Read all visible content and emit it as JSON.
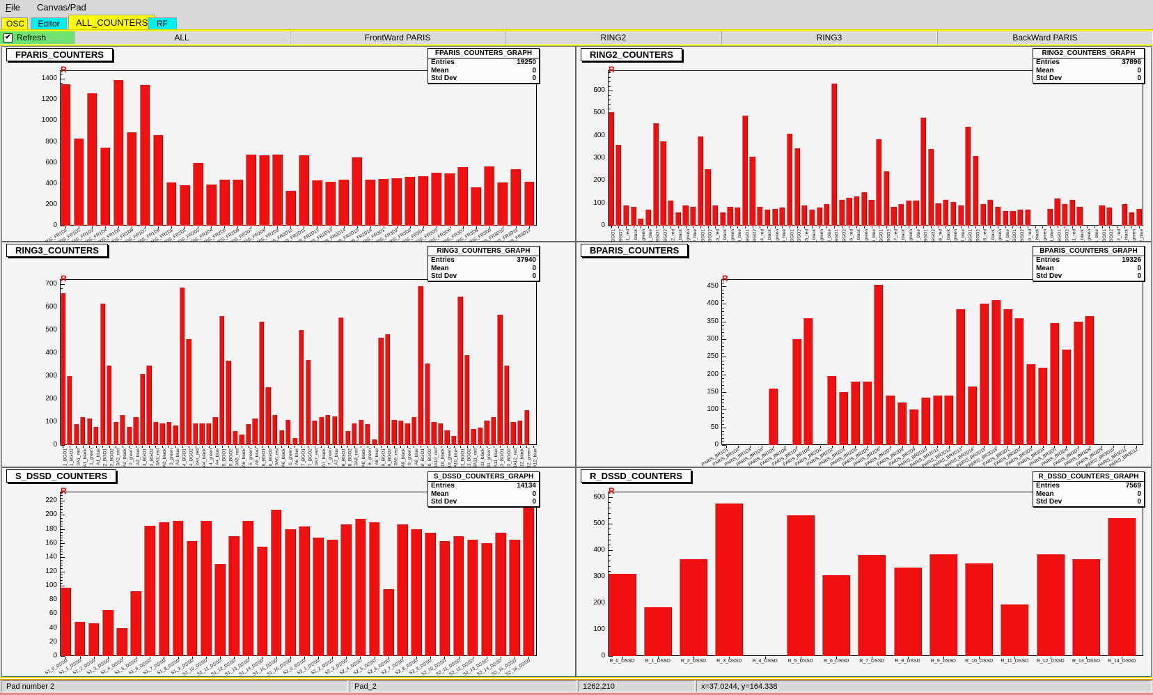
{
  "menu": {
    "items": [
      {
        "label": "File"
      },
      {
        "label": "Canvas/Pad"
      }
    ]
  },
  "tabs": [
    {
      "label": "OSC"
    },
    {
      "label": "Editor"
    },
    {
      "label": "ALL_COUNTERS"
    },
    {
      "label": "RF"
    }
  ],
  "toolbar": {
    "refresh_label": "Refresh",
    "refresh_checked": true,
    "checkmark": "✔",
    "buttons": [
      {
        "label": "ALL"
      },
      {
        "label": "FrontWard PARIS"
      },
      {
        "label": "RING2"
      },
      {
        "label": "RING3"
      },
      {
        "label": "BackWard PARIS"
      }
    ]
  },
  "stats_labels": {
    "entries": "Entries",
    "mean": "Mean",
    "std_dev": "Std Dev"
  },
  "marker_label": "R",
  "colors": {
    "bar": "#f11010",
    "tab_yellow": "#ffff00",
    "tab_cyan": "#00f0f0",
    "refresh_green": "#6fe26f",
    "underline_yellow": "#ffff00",
    "marker_red": "#f20000"
  },
  "statusbar": {
    "fields": [
      {
        "text": "Pad number 2"
      },
      {
        "text": "Pad_2"
      },
      {
        "text": "1262,210"
      },
      {
        "text": "x=37.0244, y=164.338"
      }
    ]
  },
  "chart_data": [
    {
      "type": "bar",
      "title": "FPARIS_COUNTERS",
      "grid": false,
      "legend": false,
      "stats": {
        "name": "FPARIS_COUNTERS_GRAPH",
        "entries": 19250,
        "mean": 0,
        "std_dev": 0
      },
      "ylim": [
        0,
        1480
      ],
      "yticks": {
        "max": 1400,
        "step": 200,
        "minor": 40
      },
      "categories": [
        "PARIS_FR1D1",
        "PARIS_FR1D2",
        "PARIS_FR1D3",
        "PARIS_FR1D4",
        "PARIS_FR1D5",
        "PARIS_FR1D6",
        "PARIS_FR1D7",
        "PARIS_FR1D8",
        "PARIS_FR2D1",
        "PARIS_FR2D2",
        "PARIS_FR2D3",
        "PARIS_FR2D4",
        "PARIS_FR2D5",
        "PARIS_FR2D6",
        "PARIS_FR2D7",
        "PARIS_FR2D8",
        "PARIS_FR2D9",
        "PARIS_FR2D10",
        "PARIS_FR2D11",
        "PARIS_FR2D12",
        "PARIS_FR2D13",
        "PARIS_FR2D14",
        "PARIS_FR2D15",
        "PARIS_FR2D16",
        "PARIS_FR3D1",
        "PARIS_FR3D2",
        "PARIS_FR3D3",
        "PARIS_FR3D4",
        "PARIS_FR3D5",
        "PARIS_FR3D6",
        "PARIS_FR3D7",
        "PARIS_FR3D8",
        "PARIS_FR3D9",
        "PARIS_FR3D10",
        "PARIS_FR3D11",
        "PARIS_FR3D12"
      ],
      "values": [
        1350,
        830,
        1260,
        745,
        1390,
        890,
        1340,
        860,
        410,
        385,
        600,
        395,
        440,
        440,
        675,
        670,
        675,
        330,
        670,
        430,
        420,
        440,
        650,
        440,
        445,
        450,
        465,
        470,
        505,
        495,
        560,
        365,
        565,
        415,
        540,
        420
      ]
    },
    {
      "type": "bar",
      "title": "RING2_COUNTERS",
      "grid": false,
      "legend": false,
      "stats": {
        "name": "RING2_COUNTERS_GRAPH",
        "entries": 37896,
        "mean": 0,
        "std_dev": 0
      },
      "ylim": [
        0,
        690
      ],
      "yticks": {
        "max": 600,
        "step": 100,
        "minor": 20
      },
      "categories": [
        "1_BGO1",
        "1_BGO2",
        "2A1_red",
        "A1_black",
        "1_green",
        "A1_blue",
        "2_BGO1",
        "2_BGO2",
        "2A2_red",
        "A2_black",
        "2_green",
        "A2_blue",
        "3_BGO1",
        "3_BGO2",
        "2A3_red",
        "A3_black",
        "3_green",
        "A3_blue",
        "4_BGO1",
        "4_BGO2",
        "2A4_red",
        "A4_black",
        "4_green",
        "A4_blue",
        "5_BGO1",
        "5_BGO2",
        "2A5_red",
        "A5_black",
        "5_green",
        "A5_blue",
        "6_BGO1",
        "6_BGO2",
        "2A6_red",
        "A6_black",
        "6_green",
        "A6_blue",
        "7_BGO1",
        "7_BGO2",
        "2A7_red",
        "A7_black",
        "7_green",
        "A7_blue",
        "8_BGO1",
        "8_BGO2",
        "2A8_red",
        "A8_black",
        "8_green",
        "A8_blue",
        "9_BGO1",
        "9_BGO2",
        "2A9_red",
        "A9_black",
        "9_green",
        "A9_blue",
        "10_BGO1",
        "10_BGO2",
        "2A10_red",
        "A10_black",
        "10_green",
        "A10_blue",
        "11_BGO1",
        "11_BGO2",
        "2A11_red",
        "A11_black",
        "11_green",
        "A11_blue",
        "12_BGO1",
        "12_BGO2",
        "2A12_red",
        "A12_black",
        "12_green",
        "A12_blue"
      ],
      "values": [
        505,
        360,
        90,
        85,
        30,
        70,
        455,
        375,
        110,
        60,
        90,
        85,
        395,
        250,
        90,
        60,
        85,
        80,
        490,
        305,
        85,
        70,
        75,
        80,
        410,
        345,
        90,
        70,
        80,
        95,
        630,
        115,
        125,
        130,
        150,
        115,
        385,
        240,
        85,
        95,
        110,
        110,
        480,
        340,
        100,
        115,
        105,
        90,
        440,
        310,
        95,
        115,
        85,
        65,
        65,
        70,
        70,
        0,
        0,
        75,
        120,
        95,
        115,
        85,
        0,
        0,
        90,
        80,
        0,
        95,
        60,
        75
      ]
    },
    {
      "type": "bar",
      "title": "RING3_COUNTERS",
      "grid": false,
      "legend": false,
      "stats": {
        "name": "RING3_COUNTERS_GRAPH",
        "entries": 37940,
        "mean": 0,
        "std_dev": 0
      },
      "ylim": [
        0,
        720
      ],
      "yticks": {
        "max": 700,
        "step": 100,
        "minor": 20
      },
      "categories": [
        "1_BGO1",
        "1_BGO2",
        "3A1_red",
        "A1_black",
        "1_green",
        "A1_blue",
        "2_BGO1",
        "2_BGO2",
        "3A2_red",
        "A2_black",
        "2_green",
        "A2_blue",
        "3_BGO1",
        "3_BGO2",
        "3A3_red",
        "A3_black",
        "3_green",
        "A3_blue",
        "4_BGO1",
        "4_BGO2",
        "3A4_red",
        "A4_black",
        "4_green",
        "A4_blue",
        "5_BGO1",
        "5_BGO2",
        "3A5_red",
        "A5_black",
        "5_green",
        "A5_blue",
        "6_BGO1",
        "6_BGO2",
        "3A6_red",
        "A6_black",
        "6_green",
        "A6_blue",
        "7_BGO1",
        "7_BGO2",
        "3A7_red",
        "A7_black",
        "7_green",
        "A7_blue",
        "8_BGO1",
        "8_BGO2",
        "3A8_red",
        "A8_black",
        "8_green",
        "A8_blue",
        "9_BGO1",
        "9_BGO2",
        "3A9_red",
        "A9_black",
        "9_green",
        "A9_blue",
        "10_BGO1",
        "10_BGO2",
        "3A10_red",
        "A10_black",
        "10_green",
        "A10_blue",
        "11_BGO1",
        "11_BGO2",
        "3A11_red",
        "A11_black",
        "11_green",
        "A11_blue",
        "12_BGO1",
        "12_BGO2",
        "3A12_red",
        "A12_black",
        "12_green",
        "A12_blue"
      ],
      "values": [
        660,
        300,
        90,
        120,
        115,
        80,
        615,
        345,
        100,
        130,
        80,
        120,
        310,
        345,
        100,
        95,
        100,
        85,
        685,
        460,
        95,
        95,
        95,
        120,
        560,
        365,
        60,
        45,
        90,
        115,
        535,
        250,
        130,
        65,
        110,
        30,
        500,
        370,
        105,
        120,
        130,
        125,
        555,
        60,
        95,
        110,
        90,
        25,
        465,
        480,
        110,
        105,
        95,
        120,
        690,
        355,
        100,
        95,
        65,
        40,
        645,
        390,
        70,
        75,
        105,
        120,
        565,
        345,
        100,
        105,
        150,
        0
      ]
    },
    {
      "type": "bar",
      "title": "BPARIS_COUNTERS",
      "grid": false,
      "legend": false,
      "stats": {
        "name": "BPARIS_COUNTERS_GRAPH",
        "entries": 19326,
        "mean": 0,
        "std_dev": 0
      },
      "ylim": [
        0,
        470
      ],
      "yticks": {
        "max": 450,
        "step": 50,
        "minor": 10
      },
      "categories": [
        "PARIS_BR1D1",
        "PARIS_BR1D2",
        "PARIS_BR1D3",
        "PARIS_BR1D4",
        "PARIS_BR1D5",
        "PARIS_BR1D6",
        "PARIS_BR1D7",
        "PARIS_BR1D8",
        "PARIS_BR2D1",
        "PARIS_BR2D2",
        "PARIS_BR2D3",
        "PARIS_BR2D4",
        "PARIS_BR2D5",
        "PARIS_BR2D6",
        "PARIS_BR2D7",
        "PARIS_BR2D8",
        "PARIS_BR2D9",
        "PARIS_BR2D10",
        "PARIS_BR2D11",
        "PARIS_BR2D12",
        "PARIS_BR2D13",
        "PARIS_BR2D14",
        "PARIS_BR2D15",
        "PARIS_BR2D16",
        "PARIS_BR3D1",
        "PARIS_BR3D2",
        "PARIS_BR3D3",
        "PARIS_BR3D4",
        "PARIS_BR3D5",
        "PARIS_BR3D6",
        "PARIS_BR3D7",
        "PARIS_BR3D8",
        "PARIS_BR3D9",
        "PARIS_BR3D10",
        "PARIS_BR3D11",
        "PARIS_BR3D12"
      ],
      "values": [
        0,
        0,
        0,
        0,
        160,
        0,
        300,
        360,
        0,
        195,
        150,
        180,
        180,
        455,
        140,
        120,
        100,
        135,
        140,
        140,
        385,
        165,
        400,
        410,
        385,
        360,
        230,
        220,
        345,
        270,
        350,
        365,
        0,
        0,
        0,
        0
      ]
    },
    {
      "type": "bar",
      "title": "S_DSSD_COUNTERS",
      "grid": false,
      "legend": false,
      "stats": {
        "name": "S_DSSD_COUNTERS_GRAPH",
        "entries": 14134,
        "mean": 0,
        "std_dev": 0
      },
      "ylim": [
        0,
        233
      ],
      "yticks": {
        "max": 220,
        "step": 20,
        "minor": 4
      },
      "categories": [
        "S1_0_DSSD",
        "S1_1_DSSD",
        "S1_2_DSSD",
        "S1_3_DSSD",
        "S1_4_DSSD",
        "S1_5_DSSD",
        "S1_6_DSSD",
        "S1_7_DSSD",
        "S1_8_DSSD",
        "S1_9_DSSD",
        "S1_10_DSSD",
        "S1_11_DSSD",
        "S1_12_DSSD",
        "S1_13_DSSD",
        "S1_14_DSSD",
        "S1_15_DSSD",
        "S1_16_DSSD",
        "S2_0_DSSD",
        "S2_1_DSSD",
        "S2_2_DSSD",
        "S2_3_DSSD",
        "S2_4_DSSD",
        "S2_5_DSSD",
        "S2_6_DSSD",
        "S2_7_DSSD",
        "S2_8_DSSD",
        "S2_9_DSSD",
        "S2_10_DSSD",
        "S2_11_DSSD",
        "S2_12_DSSD",
        "S2_13_DSSD",
        "S2_14_DSSD",
        "S2_15_DSSD",
        "S2_16_DSSD"
      ],
      "values": [
        97,
        48,
        46,
        65,
        40,
        92,
        185,
        190,
        192,
        163,
        192,
        130,
        170,
        192,
        155,
        207,
        180,
        184,
        168,
        165,
        187,
        195,
        190,
        95,
        187,
        180,
        175,
        163,
        170,
        165,
        160,
        175,
        165,
        218
      ]
    },
    {
      "type": "bar",
      "title": "R_DSSD_COUNTERS",
      "grid": false,
      "legend": false,
      "stats": {
        "name": "R_DSSD_COUNTERS_GRAPH",
        "entries": 7569,
        "mean": 0,
        "std_dev": 0
      },
      "ylim": [
        0,
        620
      ],
      "yticks": {
        "max": 600,
        "step": 100,
        "minor": 20
      },
      "categories": [
        "R_0_DSSD",
        "R_1_DSSD",
        "R_2_DSSD",
        "R_3_DSSD",
        "R_4_DSSD",
        "R_5_DSSD",
        "R_6_DSSD",
        "R_7_DSSD",
        "R_8_DSSD",
        "R_9_DSSD",
        "R_10_DSSD",
        "R_11_DSSD",
        "R_12_DSSD",
        "R_13_DSSD",
        "R_14_DSSD"
      ],
      "values": [
        310,
        185,
        365,
        575,
        0,
        530,
        305,
        380,
        335,
        385,
        350,
        195,
        385,
        365,
        520
      ]
    }
  ]
}
